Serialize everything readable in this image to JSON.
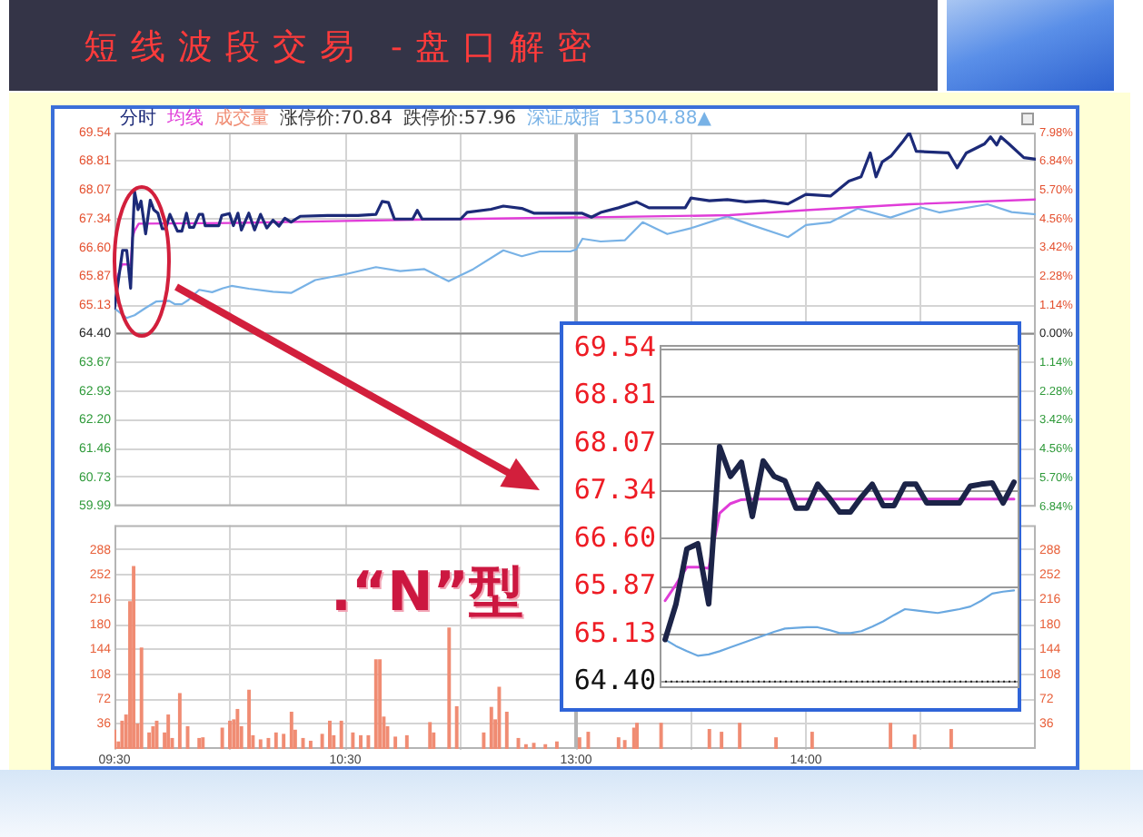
{
  "chart_data": [
    {
      "type": "line",
      "title": "短线波段交易 -盘口解密",
      "legend": "top left",
      "grid": true,
      "tick_labels": "y",
      "xlim": [
        9.5,
        11.5
      ],
      "xticks": [
        {
          "value": 10,
          "label": null
        },
        {
          "value": 10.5,
          "label": null
        },
        {
          "value": 11,
          "label": null
        }
      ],
      "ylim": [
        59.99,
        69.54
      ],
      "yticks": [
        59.99,
        60.73,
        61.46,
        {
          "value": 62.2,
          "label": "62.20"
        },
        62.93,
        63.67,
        {
          "value": 64.4,
          "label": "64.40"
        },
        65.13,
        65.87,
        {
          "value": 66.6,
          "label": "66.60"
        },
        67.34,
        68.07,
        68.81,
        69.54
      ],
      "ref_lines": [
        {
          "axis": "y",
          "value": 64.4,
          "color": "#8a8a8a"
        }
      ],
      "annotations": [
        "涨停价:70.84",
        "跌停价:57.96",
        "13504.88▲"
      ],
      "series": [
        {
          "name": "分时",
          "color": "#1c2a78",
          "x": [
            9.5,
            9.535,
            9.553,
            9.57,
            9.582,
            9.587,
            9.602,
            9.615,
            9.635,
            9.655,
            9.67,
            9.688,
            9.707,
            9.722,
            9.74,
            9.773,
            9.792,
            9.812,
            9.825,
            9.843,
            9.867,
            9.882,
            9.893,
            9.952,
            9.965,
            9.998,
            10.015,
            10.035,
            10.05,
            10.082,
            10.107,
            10.133,
            10.16,
            10.187,
            10.213,
            10.238,
            10.265,
            10.305,
            10.423,
            10.555,
            10.633,
            10.66,
            10.687,
            10.713,
            10.792,
            10.812,
            10.833,
            11.0,
            11.028,
            11.132,
            11.185,
            11.265,
            11.317,
            11.5
          ],
          "values": [
            65.05,
            66.53,
            66.53,
            65.56,
            67.38,
            68.03,
            67.57,
            67.79,
            66.95,
            67.81,
            67.57,
            67.48,
            67.08,
            67.08,
            67.45,
            67.02,
            67.02,
            67.48,
            67.12,
            67.12,
            67.45,
            67.45,
            67.16,
            67.16,
            67.42,
            67.47,
            67.16,
            67.48,
            67.05,
            67.48,
            67.05,
            67.45,
            67.1,
            67.3,
            67.15,
            67.35,
            67.25,
            67.4,
            67.42,
            67.42,
            67.45,
            67.78,
            67.75,
            67.33,
            67.33,
            67.55,
            67.33,
            67.33,
            67.5,
            67.58,
            67.66,
            67.6,
            67.48,
            67.48
          ]
        },
        {
          "name": "均线",
          "color": "#e03cd8",
          "x": [
            9.5,
            9.533,
            9.553,
            9.57,
            9.578,
            9.587,
            9.605,
            10.033,
            10.5,
            11.0,
            11.5
          ],
          "values": [
            65.65,
            66.17,
            66.17,
            66.15,
            66.86,
            67.03,
            67.21,
            67.23,
            67.28,
            67.33,
            67.37
          ]
        },
        {
          "name": "深证成指",
          "color": "#78b2e6",
          "x": [
            9.5,
            9.553,
            9.587,
            9.633,
            9.68,
            9.737,
            9.763,
            9.792,
            9.82,
            9.867,
            9.923,
            9.97,
            10.007,
            10.082,
            10.187,
            10.265,
            10.37,
            10.502,
            10.633,
            10.738,
            10.843,
            10.948,
            11.055,
            11.185,
            11.265,
            11.343,
            11.475,
            11.5
          ],
          "values": [
            65.05,
            64.8,
            64.87,
            65.05,
            65.22,
            65.24,
            65.15,
            65.15,
            65.26,
            65.52,
            65.46,
            65.56,
            65.62,
            65.55,
            65.47,
            65.44,
            65.77,
            65.92,
            66.1,
            66.0,
            66.05,
            65.74,
            66.05,
            66.53,
            66.38,
            66.5,
            66.5,
            66.55
          ]
        }
      ]
    },
    {
      "type": "line",
      "grid": true,
      "tick_labels": "y",
      "xlim": [
        13,
        15
      ],
      "xticks": [
        {
          "value": 13.5,
          "label": null
        },
        {
          "value": 14,
          "label": null
        },
        {
          "value": 14.5,
          "label": null
        }
      ],
      "ylim": [
        59.99,
        69.54
      ],
      "y2lim": [
        -6.85,
        7.98
      ],
      "y2ticks": [
        {
          "value": -6.84,
          "label": "6.84%"
        },
        {
          "value": -5.7,
          "label": "5.70%"
        },
        {
          "value": -4.56,
          "label": "4.56%"
        },
        {
          "value": -3.42,
          "label": "3.42%"
        },
        {
          "value": -2.28,
          "label": "2.28%"
        },
        {
          "value": -1.14,
          "label": "1.14%"
        },
        {
          "value": 0,
          "label": "0.00%"
        },
        {
          "value": 1.14,
          "label": "1.14%"
        },
        {
          "value": 2.28,
          "label": "2.28%"
        },
        {
          "value": 3.42,
          "label": "3.42%"
        },
        {
          "value": 4.56,
          "label": "4.56%"
        },
        {
          "value": 5.7,
          "label": "5.70%"
        },
        {
          "value": 6.84,
          "label": "6.84%"
        },
        {
          "value": 7.98,
          "label": "7.98%"
        }
      ],
      "ref_lines": [
        {
          "axis": "y",
          "value": 64.4,
          "color": "#8a8a8a"
        }
      ],
      "series": [
        {
          "color": "#1c2a78",
          "x": [
            13.0,
            13.027,
            13.067,
            13.107,
            13.185,
            13.263,
            13.317,
            13.475,
            13.5,
            13.58,
            13.658,
            13.738,
            13.817,
            13.922,
            14.0,
            14.107,
            14.187,
            14.24,
            14.28,
            14.305,
            14.332,
            14.37,
            14.423,
            14.45,
            14.48,
            14.62,
            14.658,
            14.698,
            14.777,
            14.803,
            14.83,
            14.848,
            14.883,
            14.948,
            15.0
          ],
          "values": [
            67.48,
            67.48,
            67.38,
            67.5,
            67.62,
            67.77,
            67.62,
            67.62,
            67.87,
            67.8,
            67.83,
            67.77,
            67.8,
            67.72,
            67.96,
            67.92,
            68.3,
            68.41,
            69.02,
            68.41,
            68.79,
            68.94,
            69.32,
            69.54,
            69.06,
            69.02,
            68.64,
            69.02,
            69.25,
            69.43,
            69.22,
            69.43,
            69.25,
            68.9,
            68.86
          ]
        },
        {
          "color": "#e03cd8",
          "x": [
            13.0,
            13.667,
            14.0,
            14.45,
            15.0
          ],
          "values": [
            67.37,
            67.43,
            67.56,
            67.71,
            67.83
          ]
        },
        {
          "color": "#78b2e6",
          "x": [
            13.0,
            13.028,
            13.107,
            13.212,
            13.29,
            13.397,
            13.5,
            13.658,
            13.763,
            13.922,
            14.0,
            14.107,
            14.225,
            14.368,
            14.5,
            14.58,
            14.79,
            14.895,
            15.0
          ],
          "values": [
            66.55,
            66.83,
            66.76,
            66.79,
            67.25,
            66.95,
            67.1,
            67.4,
            67.18,
            66.87,
            67.18,
            67.25,
            67.6,
            67.37,
            67.63,
            67.5,
            67.71,
            67.51,
            67.45
          ]
        }
      ]
    },
    {
      "type": "bar",
      "legend": "top left",
      "grid": true,
      "xlim": [
        9.5,
        11.5
      ],
      "xticks": [
        {
          "value": 9.5,
          "label": "09:30"
        },
        {
          "value": 10,
          "label": null
        },
        {
          "value": 10.5,
          "label": "10:30"
        },
        {
          "value": 11,
          "label": null
        }
      ],
      "ylim": [
        0,
        324
      ],
      "yticks": [
        36,
        72,
        108,
        144,
        180,
        216,
        252,
        288
      ],
      "series": [
        {
          "name": "成交量",
          "color": "#f08c73",
          "x": [
            9.5,
            9.517,
            9.533,
            9.55,
            9.567,
            9.583,
            9.6,
            9.617,
            9.65,
            9.667,
            9.683,
            9.717,
            9.733,
            9.75,
            9.783,
            9.817,
            9.867,
            9.883,
            9.967,
            10.0,
            10.017,
            10.033,
            10.05,
            10.083,
            10.1,
            10.133,
            10.167,
            10.2,
            10.233,
            10.267,
            10.283,
            10.317,
            10.35,
            10.4,
            10.433,
            10.45,
            10.483,
            10.533,
            10.567,
            10.6,
            10.633,
            10.65,
            10.667,
            10.683,
            10.717,
            10.767,
            10.867,
            10.883,
            10.95,
            10.983,
            11.1,
            11.133,
            11.15,
            11.167,
            11.2,
            11.25,
            11.283,
            11.317,
            11.367,
            11.417
          ],
          "values": [
            27,
            10,
            40,
            49,
            213,
            264,
            36,
            146,
            23,
            32,
            40,
            23,
            49,
            15,
            80,
            32,
            15,
            16,
            30,
            40,
            42,
            57,
            32,
            85,
            19,
            13,
            15,
            23,
            21,
            53,
            27,
            15,
            11,
            21,
            40,
            19,
            40,
            23,
            19,
            19,
            129,
            129,
            46,
            32,
            17,
            19,
            38,
            23,
            175,
            61,
            23,
            60,
            42,
            89,
            53,
            15,
            6,
            8,
            6,
            10
          ]
        }
      ]
    },
    {
      "type": "bar",
      "grid": true,
      "xlim": [
        13,
        15
      ],
      "xticks": [
        {
          "value": 13,
          "label": "13:00"
        },
        {
          "value": 13.5,
          "label": null
        },
        {
          "value": 14,
          "label": "14:00"
        },
        {
          "value": 14.5,
          "label": null
        }
      ],
      "y2lim": [
        0,
        324
      ],
      "y2ticks": [
        36,
        72,
        108,
        144,
        180,
        216,
        252,
        288
      ],
      "series": [
        {
          "axis": "y2",
          "color": "#f08c73",
          "x": [
            13.015,
            13.053,
            13.185,
            13.212,
            13.252,
            13.265,
            13.37,
            13.58,
            13.633,
            13.712,
            13.87,
            14.027,
            14.368,
            14.473,
            14.632
          ],
          "values": [
            16,
            24,
            16,
            12,
            30,
            37,
            37,
            28,
            24,
            37,
            16,
            24,
            37,
            20,
            28
          ]
        }
      ]
    },
    {
      "type": "line",
      "grid": "y",
      "tick_labels": "y",
      "categories": [
        null,
        null,
        null,
        null,
        null,
        null,
        null,
        null,
        null,
        null,
        null,
        null,
        null,
        null,
        null,
        null,
        null,
        null,
        null,
        null,
        null,
        null,
        null,
        null,
        null,
        null,
        null,
        null,
        null,
        null,
        null,
        null,
        null
      ],
      "ylim": [
        64.3,
        69.6
      ],
      "yticks": [
        {
          "value": 64.4,
          "label": "64.40"
        },
        65.13,
        65.87,
        {
          "value": 66.6,
          "label": "66.60"
        },
        67.34,
        68.07,
        68.81,
        69.54
      ],
      "ref_lines": [
        {
          "axis": "y",
          "value": 64.4,
          "color": "#222222",
          "line_style": "dotted"
        }
      ],
      "annotations": [
        ".“N”型"
      ],
      "series": [
        {
          "color": "#1c2448",
          "values": [
            65.05,
            65.6,
            66.45,
            66.53,
            65.6,
            68.03,
            67.57,
            67.79,
            66.95,
            67.81,
            67.57,
            67.5,
            67.08,
            67.08,
            67.45,
            67.25,
            67.02,
            67.02,
            67.25,
            67.45,
            67.12,
            67.12,
            67.45,
            67.45,
            67.16,
            67.16,
            67.16,
            67.16,
            67.42,
            67.45,
            67.47,
            67.16,
            67.48
          ]
        },
        {
          "color": "#e03cd8",
          "values": [
            65.65,
            65.9,
            66.17,
            66.17,
            66.15,
            67.0,
            67.15,
            67.21,
            67.22,
            67.22,
            67.22,
            67.22,
            67.22,
            67.22,
            67.22,
            67.22,
            67.22,
            67.22,
            67.22,
            67.22,
            67.22,
            67.22,
            67.22,
            67.22,
            67.22,
            67.22,
            67.22,
            67.22,
            67.22,
            67.22,
            67.22,
            67.22,
            67.22
          ]
        },
        {
          "color": "#6aa8e0",
          "values": [
            65.05,
            64.95,
            64.87,
            64.8,
            64.82,
            64.87,
            64.93,
            64.99,
            65.05,
            65.11,
            65.17,
            65.22,
            65.23,
            65.24,
            65.24,
            65.2,
            65.15,
            65.15,
            65.18,
            65.25,
            65.33,
            65.43,
            65.52,
            65.5,
            65.48,
            65.46,
            65.49,
            65.52,
            65.56,
            65.65,
            65.76,
            65.79,
            65.81
          ]
        }
      ]
    }
  ]
}
